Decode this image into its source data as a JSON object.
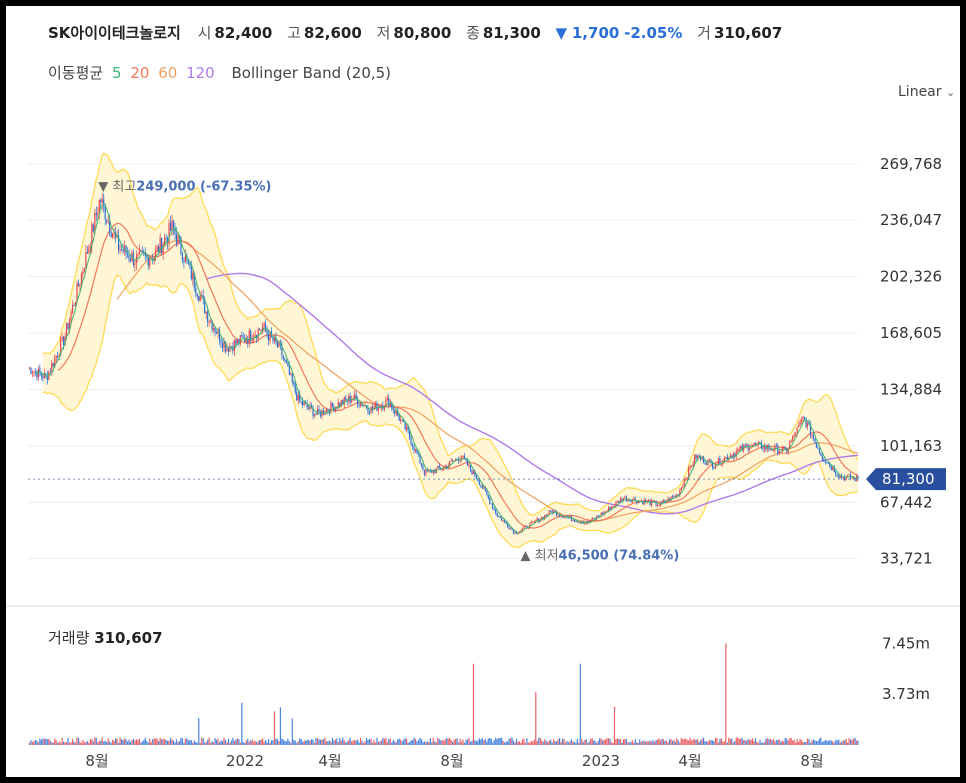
{
  "header": {
    "name": "SK아이이테크놀로지",
    "open_label": "시",
    "open": "82,400",
    "high_label": "고",
    "high": "82,600",
    "low_label": "저",
    "low": "80,800",
    "close_label": "종",
    "close": "81,300",
    "change_arrow": "▼",
    "change": "1,700",
    "change_pct": "-2.05%",
    "volume_label": "거",
    "volume": "310,607"
  },
  "legend": {
    "ma_label": "이동평균",
    "ma": [
      {
        "label": "5",
        "color": "#3cb371"
      },
      {
        "label": "20",
        "color": "#f07a5a"
      },
      {
        "label": "60",
        "color": "#f0a060"
      },
      {
        "label": "120",
        "color": "#b07ae8"
      }
    ],
    "bollinger": "Bollinger Band (20,5)"
  },
  "scale_label": "Linear",
  "price_axis": [
    "269,768",
    "236,047",
    "202,326",
    "168,605",
    "134,884",
    "101,163",
    "67,442",
    "33,721"
  ],
  "last_price_tag": "81,300",
  "max_label": {
    "prefix": "▼ 최고",
    "value": "249,000 (-67.35%)"
  },
  "min_label": {
    "prefix": "▲ 최저",
    "value": "46,500 (74.84%)"
  },
  "volume_panel": {
    "title": "거래량",
    "value": "310,607",
    "axis": [
      "7.45m",
      "3.73m"
    ]
  },
  "x_axis": [
    "8월",
    "2022",
    "4월",
    "8월",
    "2023",
    "4월",
    "8월"
  ],
  "colors": {
    "up": "#e8454a",
    "down": "#2a6ed8",
    "ma5": "#3cb371",
    "ma20": "#f07a5a",
    "ma60": "#f0a060",
    "ma120": "#b07ae8",
    "band": "#ffd84a",
    "band_fill": "#fff6d6"
  },
  "chart_data": {
    "type": "line",
    "y_scale": "linear",
    "ylim": [
      15000,
      290000
    ],
    "x_ticks": [
      "8월",
      "2022",
      "4월",
      "8월",
      "2023",
      "4월",
      "8월"
    ],
    "price_ticks": [
      269768,
      236047,
      202326,
      168605,
      134884,
      101163,
      67442,
      33721
    ],
    "close": [
      148000,
      142000,
      165000,
      205000,
      249000,
      220000,
      212000,
      215000,
      232000,
      205000,
      178000,
      160000,
      165000,
      172000,
      158000,
      128000,
      120000,
      125000,
      130000,
      123000,
      128000,
      110000,
      85000,
      88000,
      95000,
      80000,
      60000,
      49000,
      55000,
      62000,
      58000,
      55000,
      62000,
      70000,
      68000,
      66000,
      72000,
      95000,
      90000,
      96000,
      102000,
      100000,
      98000,
      118000,
      95000,
      83000,
      81300
    ],
    "volume_axis": [
      7450000,
      3730000
    ],
    "volume_max_label": 7450000,
    "max": {
      "value": 249000,
      "pct": -67.35
    },
    "min": {
      "value": 46500,
      "pct": 74.84
    },
    "last": 81300
  }
}
